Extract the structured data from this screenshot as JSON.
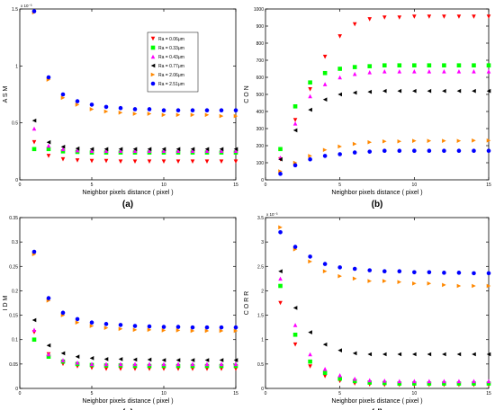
{
  "figure": {
    "legend_title": "",
    "series_meta": [
      {
        "label": "Ra = 0.06μm",
        "color": "#ff0000",
        "marker": "triangle-down"
      },
      {
        "label": "Ra = 0.33μm",
        "color": "#00ff00",
        "marker": "square"
      },
      {
        "label": "Ra = 0.43μm",
        "color": "#ff00ff",
        "marker": "triangle-up"
      },
      {
        "label": "Ra = 0.77μm",
        "color": "#000000",
        "marker": "triangle-left"
      },
      {
        "label": "Ra = 2.06μm",
        "color": "#ff8800",
        "marker": "triangle-right"
      },
      {
        "label": "Ra = 2.51μm",
        "color": "#0000ff",
        "marker": "circle"
      }
    ]
  },
  "chart_data": [
    {
      "type": "scatter",
      "panel_label": "(a)",
      "ylabel": "A S M",
      "xlabel": "Neighbor pixels distance ( pixel )",
      "exponent_label": "x 10⁻³",
      "xlim": [
        0,
        15
      ],
      "ylim": [
        0,
        1.5
      ],
      "xticks": [
        0,
        5,
        10,
        15
      ],
      "yticks": [
        0,
        0.5,
        1,
        1.5
      ],
      "ytick_labels": [
        "0",
        "0.5",
        "1",
        "1.5"
      ],
      "legend": "top-right",
      "x": [
        1,
        2,
        3,
        4,
        5,
        6,
        7,
        8,
        9,
        10,
        11,
        12,
        13,
        14,
        15
      ],
      "series": [
        {
          "values": [
            0.33,
            0.21,
            0.18,
            0.17,
            0.165,
            0.165,
            0.16,
            0.16,
            0.16,
            0.16,
            0.16,
            0.16,
            0.16,
            0.16,
            0.16
          ]
        },
        {
          "values": [
            0.27,
            0.27,
            0.25,
            0.245,
            0.24,
            0.24,
            0.24,
            0.24,
            0.24,
            0.24,
            0.24,
            0.24,
            0.24,
            0.24,
            0.24
          ]
        },
        {
          "values": [
            0.45,
            0.3,
            0.27,
            0.26,
            0.255,
            0.255,
            0.255,
            0.255,
            0.255,
            0.255,
            0.255,
            0.255,
            0.255,
            0.255,
            0.255
          ]
        },
        {
          "values": [
            0.52,
            0.33,
            0.29,
            0.275,
            0.27,
            0.27,
            0.27,
            0.27,
            0.27,
            0.27,
            0.27,
            0.27,
            0.27,
            0.27,
            0.27
          ]
        },
        {
          "values": [
            1.47,
            0.88,
            0.72,
            0.66,
            0.62,
            0.6,
            0.59,
            0.58,
            0.58,
            0.57,
            0.57,
            0.57,
            0.57,
            0.56,
            0.56
          ]
        },
        {
          "values": [
            1.48,
            0.9,
            0.75,
            0.69,
            0.66,
            0.64,
            0.63,
            0.62,
            0.62,
            0.61,
            0.61,
            0.61,
            0.61,
            0.61,
            0.61
          ]
        }
      ]
    },
    {
      "type": "scatter",
      "panel_label": "(b)",
      "ylabel": "C O N",
      "xlabel": "Neighbor pixels distance ( pixel )",
      "exponent_label": "",
      "xlim": [
        0,
        15
      ],
      "ylim": [
        0,
        1000
      ],
      "xticks": [
        0,
        5,
        10,
        15
      ],
      "yticks": [
        0,
        100,
        200,
        300,
        400,
        500,
        600,
        700,
        800,
        900,
        1000
      ],
      "ytick_labels": [
        "0",
        "100",
        "200",
        "300",
        "400",
        "500",
        "600",
        "700",
        "800",
        "900",
        "1000"
      ],
      "legend": "none",
      "x": [
        1,
        2,
        3,
        4,
        5,
        6,
        7,
        8,
        9,
        10,
        11,
        12,
        13,
        14,
        15
      ],
      "series": [
        {
          "values": [
            120,
            350,
            530,
            720,
            840,
            910,
            940,
            950,
            950,
            955,
            955,
            955,
            955,
            955,
            955
          ]
        },
        {
          "values": [
            180,
            430,
            570,
            625,
            650,
            660,
            665,
            670,
            670,
            670,
            670,
            670,
            670,
            670,
            670
          ]
        },
        {
          "values": [
            130,
            330,
            490,
            560,
            600,
            620,
            630,
            635,
            635,
            635,
            635,
            635,
            635,
            635,
            635
          ]
        },
        {
          "values": [
            120,
            290,
            410,
            470,
            500,
            510,
            515,
            520,
            520,
            520,
            520,
            520,
            520,
            520,
            520
          ]
        },
        {
          "values": [
            50,
            100,
            140,
            175,
            195,
            210,
            220,
            225,
            225,
            228,
            228,
            228,
            228,
            230,
            230
          ]
        },
        {
          "values": [
            35,
            85,
            120,
            140,
            150,
            160,
            165,
            170,
            170,
            170,
            170,
            170,
            170,
            170,
            170
          ]
        }
      ]
    },
    {
      "type": "scatter",
      "panel_label": "(c)",
      "ylabel": "I D M",
      "xlabel": "Neighbor pixels distance ( pixel )",
      "exponent_label": "",
      "xlim": [
        0,
        15
      ],
      "ylim": [
        0,
        0.35
      ],
      "xticks": [
        0,
        5,
        10,
        15
      ],
      "yticks": [
        0,
        0.05,
        0.1,
        0.15,
        0.2,
        0.25,
        0.3,
        0.35
      ],
      "ytick_labels": [
        "0",
        "0.05",
        "0.1",
        "0.15",
        "0.2",
        "0.25",
        "0.3",
        "0.35"
      ],
      "legend": "none",
      "x": [
        1,
        2,
        3,
        4,
        5,
        6,
        7,
        8,
        9,
        10,
        11,
        12,
        13,
        14,
        15
      ],
      "series": [
        {
          "values": [
            0.115,
            0.07,
            0.05,
            0.045,
            0.042,
            0.04,
            0.04,
            0.04,
            0.04,
            0.04,
            0.04,
            0.04,
            0.04,
            0.04,
            0.04
          ]
        },
        {
          "values": [
            0.1,
            0.065,
            0.055,
            0.05,
            0.048,
            0.047,
            0.047,
            0.046,
            0.046,
            0.046,
            0.046,
            0.046,
            0.046,
            0.046,
            0.046
          ]
        },
        {
          "values": [
            0.12,
            0.07,
            0.058,
            0.053,
            0.05,
            0.05,
            0.05,
            0.05,
            0.05,
            0.05,
            0.05,
            0.05,
            0.05,
            0.05,
            0.05
          ]
        },
        {
          "values": [
            0.14,
            0.088,
            0.072,
            0.065,
            0.062,
            0.06,
            0.06,
            0.059,
            0.059,
            0.058,
            0.058,
            0.058,
            0.058,
            0.058,
            0.058
          ]
        },
        {
          "values": [
            0.275,
            0.18,
            0.15,
            0.135,
            0.128,
            0.124,
            0.122,
            0.12,
            0.12,
            0.119,
            0.119,
            0.118,
            0.118,
            0.118,
            0.118
          ]
        },
        {
          "values": [
            0.28,
            0.185,
            0.155,
            0.142,
            0.135,
            0.132,
            0.13,
            0.128,
            0.127,
            0.126,
            0.126,
            0.125,
            0.125,
            0.125,
            0.125
          ]
        }
      ]
    },
    {
      "type": "scatter",
      "panel_label": "(d)",
      "ylabel": "C O R R",
      "xlabel": "Neighbor pixels distance ( pixel )",
      "exponent_label": "x 10⁻³",
      "xlim": [
        0,
        15
      ],
      "ylim": [
        0,
        3.5
      ],
      "xticks": [
        0,
        5,
        10,
        15
      ],
      "yticks": [
        0,
        0.5,
        1,
        1.5,
        2,
        2.5,
        3,
        3.5
      ],
      "ytick_labels": [
        "0",
        "0.5",
        "1",
        "1.5",
        "2",
        "2.5",
        "3",
        "3.5"
      ],
      "legend": "none",
      "x": [
        1,
        2,
        3,
        4,
        5,
        6,
        7,
        8,
        9,
        10,
        11,
        12,
        13,
        14,
        15
      ],
      "series": [
        {
          "values": [
            1.75,
            0.9,
            0.45,
            0.25,
            0.15,
            0.1,
            0.08,
            0.07,
            0.07,
            0.07,
            0.07,
            0.07,
            0.07,
            0.07,
            0.07
          ]
        },
        {
          "values": [
            2.1,
            1.1,
            0.55,
            0.32,
            0.2,
            0.15,
            0.12,
            0.11,
            0.1,
            0.1,
            0.1,
            0.1,
            0.1,
            0.1,
            0.1
          ]
        },
        {
          "values": [
            2.25,
            1.3,
            0.7,
            0.4,
            0.27,
            0.2,
            0.17,
            0.16,
            0.15,
            0.15,
            0.15,
            0.15,
            0.15,
            0.15,
            0.15
          ]
        },
        {
          "values": [
            2.4,
            1.65,
            1.15,
            0.9,
            0.78,
            0.72,
            0.7,
            0.7,
            0.7,
            0.7,
            0.7,
            0.7,
            0.7,
            0.7,
            0.7
          ]
        },
        {
          "values": [
            3.3,
            2.85,
            2.6,
            2.4,
            2.3,
            2.25,
            2.2,
            2.2,
            2.18,
            2.15,
            2.15,
            2.12,
            2.1,
            2.1,
            2.1
          ]
        },
        {
          "values": [
            3.2,
            2.9,
            2.7,
            2.55,
            2.48,
            2.45,
            2.42,
            2.4,
            2.4,
            2.38,
            2.38,
            2.37,
            2.37,
            2.36,
            2.36
          ]
        }
      ]
    }
  ]
}
